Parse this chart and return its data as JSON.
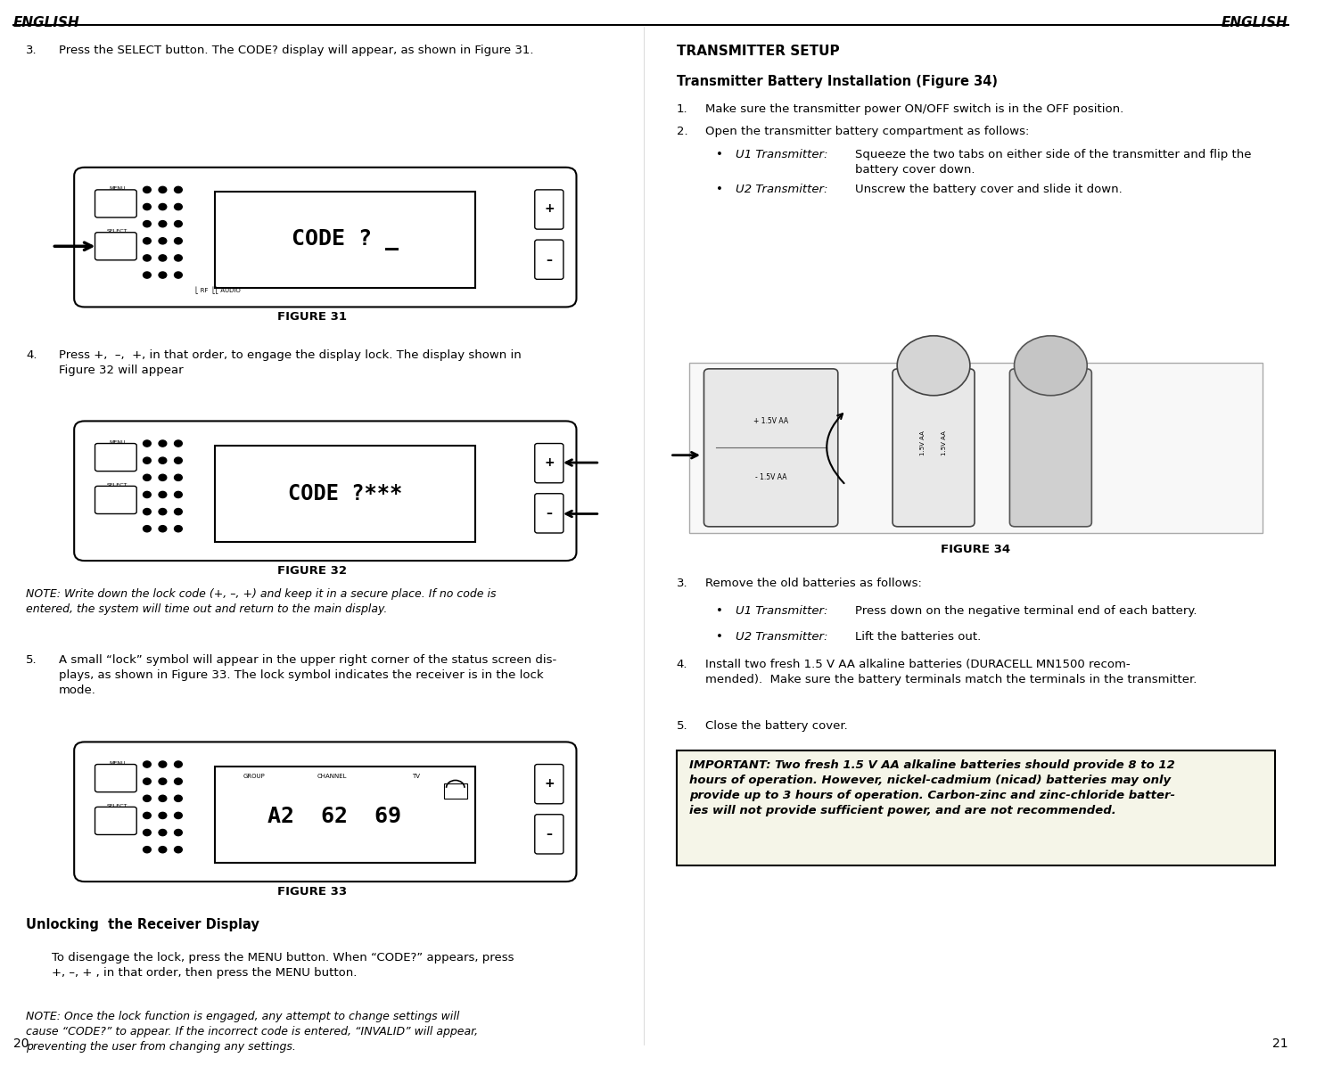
{
  "bg_color": "#ffffff",
  "text_color": "#000000",
  "page_width": 15.04,
  "page_height": 11.96,
  "left_header": "ENGLISH",
  "right_header": "ENGLISH",
  "left_footer": "20",
  "right_footer": "21",
  "important_text": "IMPORTANT: Two fresh 1.5 V AA alkaline batteries should provide 8 to 12\nhours of operation. However, nickel-cadmium (nicad) batteries may only\nprovide up to 3 hours of operation. Carbon-zinc and zinc-chloride batter-\nies will not provide sufficient power, and are not recommended."
}
